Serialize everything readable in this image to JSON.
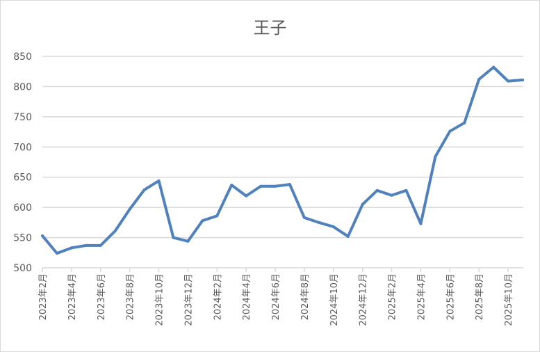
{
  "chart_data": {
    "type": "line",
    "title": "王子",
    "xlabel": "",
    "ylabel": "",
    "ylim": [
      500,
      850
    ],
    "yticks": [
      500,
      550,
      600,
      650,
      700,
      750,
      800,
      850
    ],
    "grid": true,
    "legend": "none",
    "line_color": "#4f81bd",
    "x_tick_labels": [
      "2023年2月",
      "2023年4月",
      "2023年6月",
      "2023年8月",
      "2023年10月",
      "2023年12月",
      "2024年2月",
      "2024年4月",
      "2024年6月",
      "2024年8月",
      "2024年10月",
      "2024年12月",
      "2025年2月",
      "2025年4月",
      "2025年6月",
      "2025年8月",
      "2025年10月"
    ],
    "categories": [
      "2023年2月",
      "2023年3月",
      "2023年4月",
      "2023年5月",
      "2023年6月",
      "2023年7月",
      "2023年8月",
      "2023年9月",
      "2023年10月",
      "2023年11月",
      "2023年12月",
      "2024年1月",
      "2024年2月",
      "2024年3月",
      "2024年4月",
      "2024年5月",
      "2024年6月",
      "2024年7月",
      "2024年8月",
      "2024年9月",
      "2024年10月",
      "2024年11月",
      "2024年12月",
      "2025年1月",
      "2025年2月",
      "2025年3月",
      "2025年4月",
      "2025年5月",
      "2025年6月",
      "2025年7月",
      "2025年8月",
      "2025年9月",
      "2025年10月",
      "2025年11月"
    ],
    "values": [
      553,
      524,
      533,
      537,
      537,
      561,
      597,
      629,
      644,
      550,
      544,
      578,
      586,
      637,
      619,
      635,
      635,
      638,
      583,
      575,
      568,
      552,
      605,
      628,
      620,
      628,
      573,
      684,
      726,
      740,
      812,
      832,
      809,
      811
    ]
  }
}
